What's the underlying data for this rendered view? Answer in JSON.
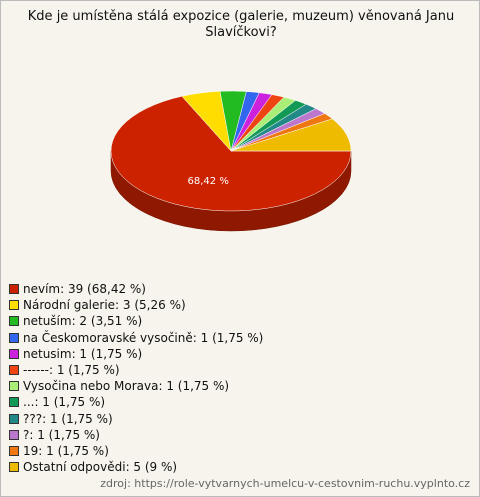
{
  "chart_data": {
    "type": "pie",
    "title": "Kde je umístěna stálá expozice (galerie, muzeum) věnovaná Janu Slavíčkovi?",
    "categories": [
      "nevím: 39 (68,42 %)",
      "Národní galerie: 3 (5,26 %)",
      "netuším: 2 (3,51 %)",
      "na Českomoravské vysočině: 1 (1,75 %)",
      "netusim: 1 (1,75 %)",
      "------: 1 (1,75 %)",
      "Vysočina nebo Morava: 1 (1,75 %)",
      "...: 1 (1,75 %)",
      "???: 1 (1,75 %)",
      "?: 1 (1,75 %)",
      "19: 1 (1,75 %)",
      "Ostatní odpovědi: 5 (9 %)"
    ],
    "values": [
      68.42,
      5.26,
      3.51,
      1.75,
      1.75,
      1.75,
      1.75,
      1.75,
      1.75,
      1.75,
      1.75,
      9
    ],
    "value_labels": [
      "68,42 %",
      null,
      null,
      null,
      null,
      null,
      null,
      null,
      null,
      null,
      null,
      null
    ],
    "colors": [
      "#cc2200",
      "#ffdd00",
      "#22bb22",
      "#3366ee",
      "#cc22dd",
      "#ee4411",
      "#aaee77",
      "#119955",
      "#228888",
      "#bb77cc",
      "#ee7711",
      "#eebb00"
    ],
    "source": "zdroj: https://role-vytvarnych-umelcu-v-cestovnim-ruchu.vyplnto.cz"
  }
}
